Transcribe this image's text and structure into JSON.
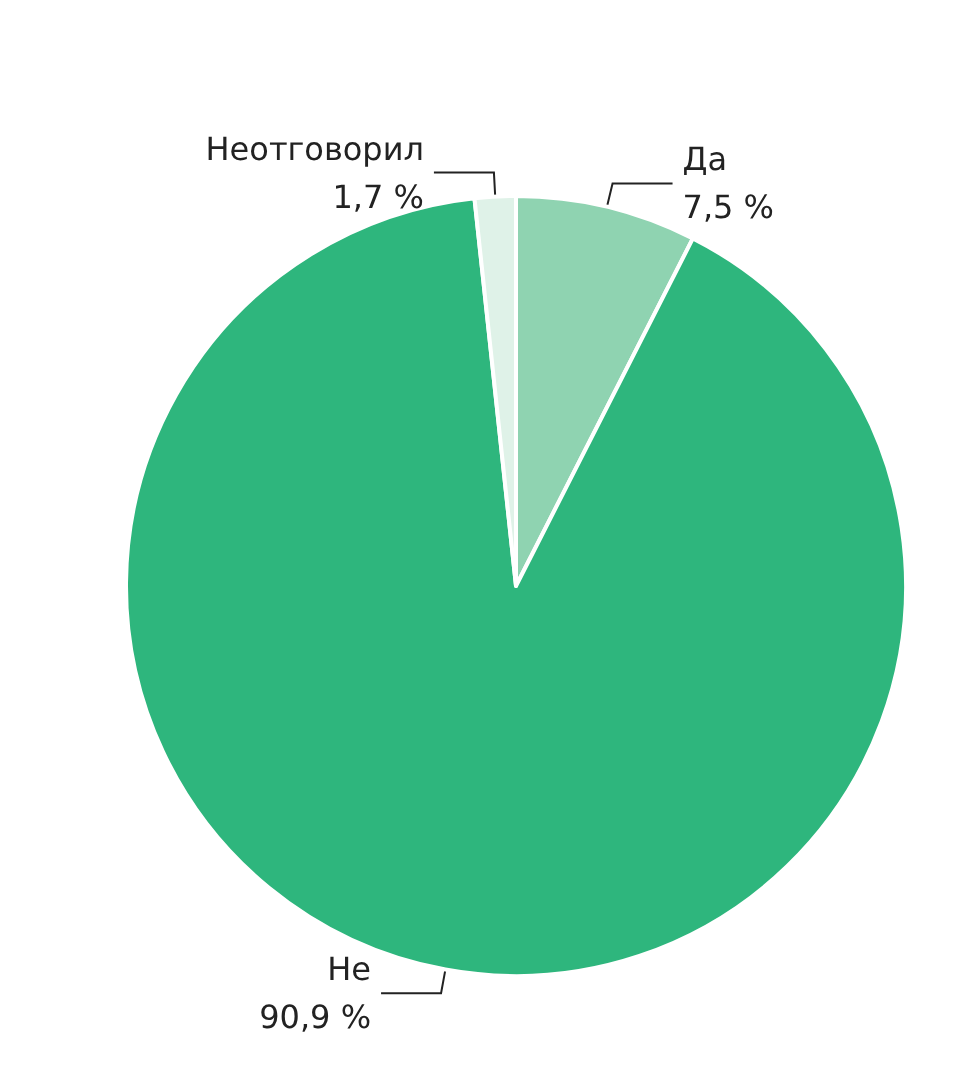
{
  "chart_data": {
    "type": "pie",
    "categories": [
      "Да",
      "Не",
      "Неотговорил"
    ],
    "values": [
      7.5,
      90.9,
      1.7
    ],
    "colors": [
      "#8fd3b1",
      "#2eb67d",
      "#dff2e8"
    ],
    "value_labels": [
      "7,5 %",
      "90,9 %",
      "1,7 %"
    ],
    "legend": false
  }
}
